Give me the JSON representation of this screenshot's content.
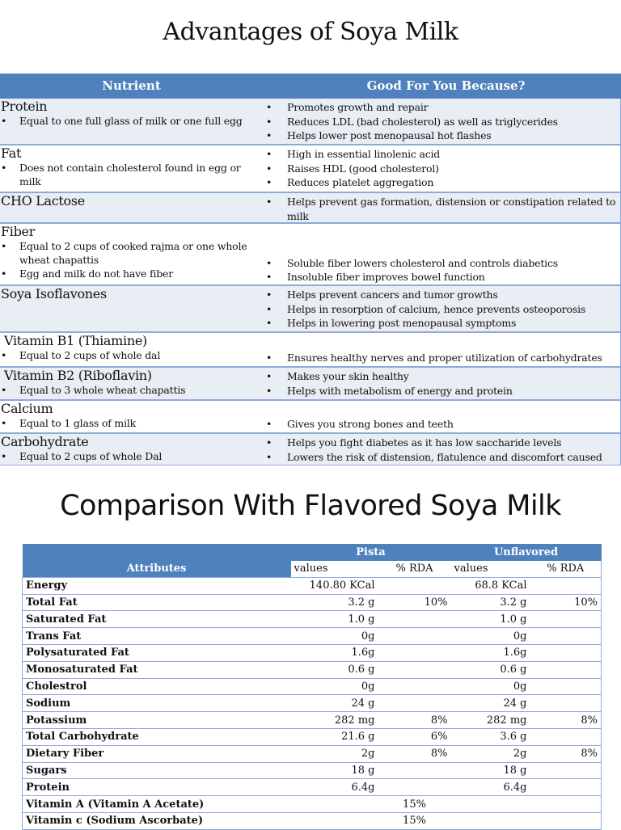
{
  "advantages": {
    "title": "Advantages of Soya Milk",
    "headers": {
      "nutrient": "Nutrient",
      "benefit": "Good For You Because?"
    },
    "rows": [
      {
        "name": "Protein",
        "notes": [
          "Equal to one full glass of milk or one full egg"
        ],
        "benefits": [
          "Promotes growth and repair",
          "Reduces LDL (bad cholesterol) as well as triglycerides",
          "Helps lower post menopausal hot flashes"
        ]
      },
      {
        "name": "Fat",
        "notes": [
          "Does not contain cholesterol found in egg or milk"
        ],
        "benefits": [
          "High in essential linolenic acid",
          "Raises HDL (good cholesterol)",
          "Reduces platelet aggregation"
        ]
      },
      {
        "name": "CHO Lactose",
        "notes": [],
        "benefits": [
          "Helps prevent gas formation, distension or constipation related to milk"
        ]
      },
      {
        "name": "Fiber",
        "notes": [
          "Equal to 2 cups of cooked rajma or one whole wheat chapattis",
          "Egg and milk do not have fiber"
        ],
        "benefits": [
          "Soluble fiber lowers cholesterol and controls diabetics",
          "Insoluble fiber improves bowel function"
        ]
      },
      {
        "name": "Soya Isoflavones",
        "notes": [],
        "benefits": [
          "Helps prevent cancers and tumor growths",
          "Helps in resorption of calcium, hence prevents osteoporosis",
          "Helps in lowering post menopausal symptoms"
        ]
      },
      {
        "name": "Vitamin B1 (Thiamine)",
        "notes": [
          "Equal to 2 cups of whole dal"
        ],
        "benefits": [
          "Ensures healthy nerves and proper utilization of carbohydrates"
        ]
      },
      {
        "name": "Vitamin B2 (Riboflavin)",
        "notes": [
          "Equal to 3 whole wheat chapattis"
        ],
        "benefits": [
          "Makes your skin healthy",
          "Helps with metabolism of energy and protein"
        ]
      },
      {
        "name": "Calcium",
        "notes": [
          "Equal to 1 glass of milk"
        ],
        "benefits": [
          "Gives you strong bones and teeth"
        ]
      },
      {
        "name": "Carbohydrate",
        "notes": [
          "Equal to 2 cups of whole Dal"
        ],
        "benefits": [
          "Helps you fight diabetes as it has low saccharide levels",
          "Lowers the risk of distension, flatulence and discomfort caused"
        ]
      }
    ]
  },
  "comparison": {
    "title": "Comparison With Flavored Soya Milk",
    "headers": {
      "attributes": "Attributes",
      "pista": "Pista",
      "unflavored": "Unflavored",
      "values": "values",
      "rda": "% RDA"
    },
    "rows": [
      {
        "attr": "Energy",
        "pista_val": "140.80 KCal",
        "pista_rda": "",
        "unf_val": "68.8 KCal",
        "unf_rda": ""
      },
      {
        "attr": "Total Fat",
        "pista_val": "3.2 g",
        "pista_rda": "10%",
        "unf_val": "3.2 g",
        "unf_rda": "10%"
      },
      {
        "attr": "Saturated Fat",
        "pista_val": "1.0 g",
        "pista_rda": "",
        "unf_val": "1.0 g",
        "unf_rda": ""
      },
      {
        "attr": "Trans Fat",
        "pista_val": "0g",
        "pista_rda": "",
        "unf_val": "0g",
        "unf_rda": ""
      },
      {
        "attr": "Polysaturated Fat",
        "pista_val": "1.6g",
        "pista_rda": "",
        "unf_val": "1.6g",
        "unf_rda": ""
      },
      {
        "attr": "Monosaturated Fat",
        "pista_val": "0.6 g",
        "pista_rda": "",
        "unf_val": "0.6 g",
        "unf_rda": ""
      },
      {
        "attr": "Cholestrol",
        "pista_val": "0g",
        "pista_rda": "",
        "unf_val": "0g",
        "unf_rda": ""
      },
      {
        "attr": "Sodium",
        "pista_val": "24 g",
        "pista_rda": "",
        "unf_val": "24 g",
        "unf_rda": ""
      },
      {
        "attr": "Potassium",
        "pista_val": "282 mg",
        "pista_rda": "8%",
        "unf_val": "282 mg",
        "unf_rda": "8%"
      },
      {
        "attr": "Total Carbohydrate",
        "pista_val": "21.6 g",
        "pista_rda": "6%",
        "unf_val": "3.6 g",
        "unf_rda": ""
      },
      {
        "attr": "Dietary Fiber",
        "pista_val": "2g",
        "pista_rda": "8%",
        "unf_val": "2g",
        "unf_rda": "8%"
      },
      {
        "attr": "Sugars",
        "pista_val": "18 g",
        "pista_rda": "",
        "unf_val": "18 g",
        "unf_rda": ""
      },
      {
        "attr": "Protein",
        "pista_val": "6.4g",
        "pista_rda": "",
        "unf_val": "6.4g",
        "unf_rda": ""
      },
      {
        "attr": "Vitamin A (Vitamin A Acetate)",
        "pista_val": "",
        "pista_rda": "15%",
        "unf_val": "",
        "unf_rda": ""
      },
      {
        "attr": "Vitamin c (Sodium Ascorbate)",
        "pista_val": "",
        "pista_rda": "15%",
        "unf_val": "",
        "unf_rda": ""
      }
    ]
  },
  "colors": {
    "header_blue": "#4f81bd",
    "row_shade": "#e9edf4",
    "border": "#8eaadb"
  }
}
